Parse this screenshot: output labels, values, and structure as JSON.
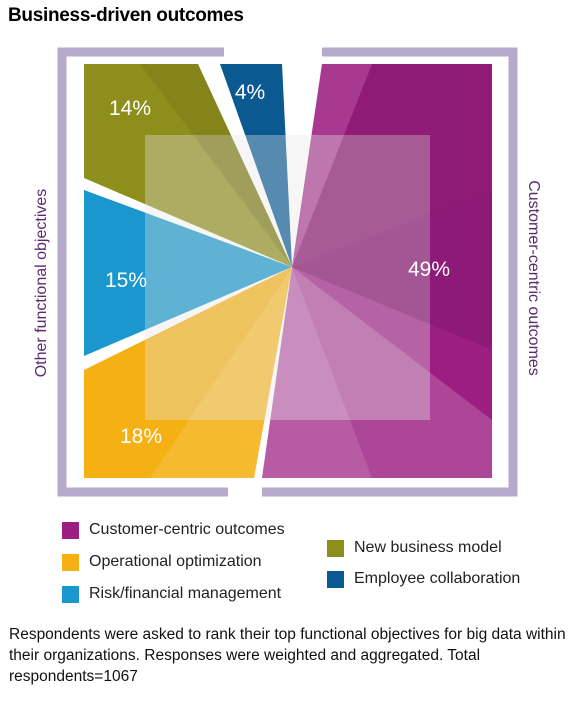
{
  "title": "Business-driven outcomes",
  "colors": {
    "magenta": "#9c1e82",
    "orange": "#f5b114",
    "blue": "#1a97cd",
    "olive": "#8e8e1c",
    "navy": "#0a5a91",
    "frame": "#b7a9cc",
    "side_label": "#5a2a6e"
  },
  "chart_data": {
    "type": "pie",
    "title": "Business-driven outcomes",
    "left_axis_label": "Other functional objectives",
    "right_axis_label": "Customer-centric outcomes",
    "slices": [
      {
        "name": "Customer-centric outcomes",
        "value": 49,
        "label": "49%"
      },
      {
        "name": "Operational optimization",
        "value": 18,
        "label": "18%"
      },
      {
        "name": "Risk/financial management",
        "value": 15,
        "label": "15%"
      },
      {
        "name": "New business model",
        "value": 14,
        "label": "14%"
      },
      {
        "name": "Employee collaboration",
        "value": 4,
        "label": "4%"
      }
    ]
  },
  "legend": [
    {
      "name": "Customer-centric outcomes",
      "color": "#9c1e82"
    },
    {
      "name": "Operational optimization",
      "color": "#f5b114"
    },
    {
      "name": "Risk/financial management",
      "color": "#1a97cd"
    },
    {
      "name": "New business model",
      "color": "#8e8e1c"
    },
    {
      "name": "Employee collaboration",
      "color": "#0a5a91"
    }
  ],
  "footnote": "Respondents were asked to rank their top functional objectives for big data within their organizations. Responses were weighted and aggregated. Total respondents=1067"
}
